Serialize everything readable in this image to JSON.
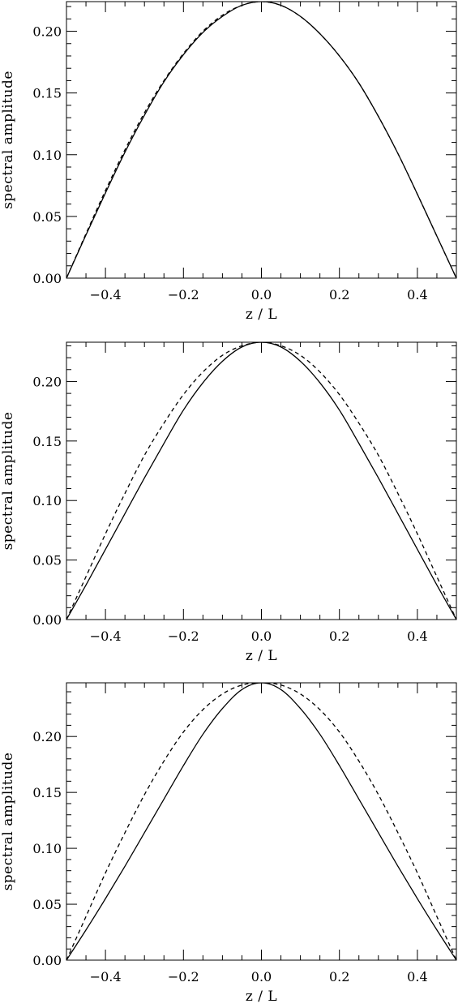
{
  "chart_data": [
    {
      "type": "line",
      "xlabel": "z / L",
      "ylabel": "spectral amplitude",
      "xlim": [
        -0.5,
        0.5
      ],
      "ylim": [
        0,
        0.224
      ],
      "xticks": [
        -0.4,
        -0.2,
        0.0,
        0.2,
        0.4
      ],
      "xtick_labels": [
        "−0.4",
        "−0.2",
        "0.0",
        "0.2",
        "0.4"
      ],
      "yticks": [
        0.0,
        0.05,
        0.1,
        0.15,
        0.2
      ],
      "ytick_labels": [
        "0.00",
        "0.05",
        "0.10",
        "0.15",
        "0.20"
      ],
      "grid": false,
      "series": [
        {
          "style": "solid",
          "color": "#000000",
          "x": [
            -0.5,
            -0.45,
            -0.4,
            -0.35,
            -0.3,
            -0.25,
            -0.2,
            -0.15,
            -0.1,
            -0.05,
            0.0,
            0.05,
            0.1,
            0.15,
            0.2,
            0.25,
            0.3,
            0.35,
            0.4,
            0.45,
            0.5
          ],
          "y": [
            0.0,
            0.035,
            0.069,
            0.102,
            0.132,
            0.159,
            0.181,
            0.199,
            0.212,
            0.221,
            0.224,
            0.221,
            0.212,
            0.198,
            0.18,
            0.158,
            0.131,
            0.101,
            0.068,
            0.034,
            0.0
          ]
        },
        {
          "style": "dashed",
          "color": "#000000",
          "x": [
            -0.5,
            -0.45,
            -0.4,
            -0.35,
            -0.3,
            -0.25,
            -0.2,
            -0.15,
            -0.1,
            -0.05,
            0.0,
            0.05,
            0.1,
            0.15,
            0.2,
            0.25,
            0.3,
            0.35,
            0.4,
            0.45,
            0.5
          ],
          "y": [
            0.0,
            0.036,
            0.071,
            0.104,
            0.134,
            0.16,
            0.182,
            0.2,
            0.213,
            0.221,
            0.224,
            0.221,
            0.212,
            0.198,
            0.18,
            0.158,
            0.131,
            0.101,
            0.068,
            0.034,
            0.0
          ]
        }
      ]
    },
    {
      "type": "line",
      "xlabel": "z / L",
      "ylabel": "spectral amplitude",
      "xlim": [
        -0.5,
        0.5
      ],
      "ylim": [
        0,
        0.233
      ],
      "xticks": [
        -0.4,
        -0.2,
        0.0,
        0.2,
        0.4
      ],
      "xtick_labels": [
        "−0.4",
        "−0.2",
        "0.0",
        "0.2",
        "0.4"
      ],
      "yticks": [
        0.0,
        0.05,
        0.1,
        0.15,
        0.2
      ],
      "ytick_labels": [
        "0.00",
        "0.05",
        "0.10",
        "0.15",
        "0.20"
      ],
      "grid": false,
      "series": [
        {
          "style": "solid",
          "color": "#000000",
          "x": [
            -0.5,
            -0.45,
            -0.4,
            -0.35,
            -0.3,
            -0.25,
            -0.2,
            -0.15,
            -0.1,
            -0.05,
            0.0,
            0.05,
            0.1,
            0.15,
            0.2,
            0.25,
            0.3,
            0.35,
            0.4,
            0.45,
            0.5
          ],
          "y": [
            0.0,
            0.029,
            0.059,
            0.089,
            0.119,
            0.148,
            0.176,
            0.199,
            0.217,
            0.229,
            0.233,
            0.229,
            0.217,
            0.199,
            0.176,
            0.148,
            0.119,
            0.089,
            0.059,
            0.029,
            0.0
          ]
        },
        {
          "style": "dashed",
          "color": "#000000",
          "x": [
            -0.5,
            -0.45,
            -0.4,
            -0.35,
            -0.3,
            -0.25,
            -0.2,
            -0.15,
            -0.1,
            -0.05,
            0.0,
            0.05,
            0.1,
            0.15,
            0.2,
            0.25,
            0.3,
            0.35,
            0.4,
            0.45,
            0.5
          ],
          "y": [
            0.0,
            0.036,
            0.072,
            0.106,
            0.138,
            0.165,
            0.189,
            0.208,
            0.222,
            0.23,
            0.233,
            0.23,
            0.222,
            0.208,
            0.189,
            0.165,
            0.138,
            0.106,
            0.072,
            0.036,
            0.0
          ]
        }
      ]
    },
    {
      "type": "line",
      "xlabel": "z / L",
      "ylabel": "spectral amplitude",
      "xlim": [
        -0.5,
        0.5
      ],
      "ylim": [
        0,
        0.248
      ],
      "xticks": [
        -0.4,
        -0.2,
        0.0,
        0.2,
        0.4
      ],
      "xtick_labels": [
        "−0.4",
        "−0.2",
        "0.0",
        "0.2",
        "0.4"
      ],
      "yticks": [
        0.0,
        0.05,
        0.1,
        0.15,
        0.2
      ],
      "ytick_labels": [
        "0.00",
        "0.05",
        "0.10",
        "0.15",
        "0.20"
      ],
      "grid": false,
      "series": [
        {
          "style": "solid",
          "color": "#000000",
          "x": [
            -0.5,
            -0.45,
            -0.4,
            -0.35,
            -0.3,
            -0.25,
            -0.2,
            -0.15,
            -0.1,
            -0.05,
            0.0,
            0.05,
            0.1,
            0.15,
            0.2,
            0.25,
            0.3,
            0.35,
            0.4,
            0.45,
            0.5
          ],
          "y": [
            0.0,
            0.027,
            0.055,
            0.084,
            0.114,
            0.144,
            0.174,
            0.202,
            0.225,
            0.242,
            0.248,
            0.242,
            0.225,
            0.202,
            0.174,
            0.144,
            0.114,
            0.084,
            0.055,
            0.027,
            0.0
          ]
        },
        {
          "style": "dashed",
          "color": "#000000",
          "x": [
            -0.5,
            -0.45,
            -0.4,
            -0.35,
            -0.3,
            -0.25,
            -0.2,
            -0.15,
            -0.1,
            -0.05,
            0.0,
            0.05,
            0.1,
            0.15,
            0.2,
            0.25,
            0.3,
            0.35,
            0.4,
            0.45,
            0.5
          ],
          "y": [
            0.0,
            0.039,
            0.078,
            0.114,
            0.148,
            0.178,
            0.204,
            0.224,
            0.238,
            0.246,
            0.248,
            0.246,
            0.238,
            0.224,
            0.204,
            0.178,
            0.148,
            0.114,
            0.078,
            0.039,
            0.0
          ]
        }
      ]
    }
  ]
}
